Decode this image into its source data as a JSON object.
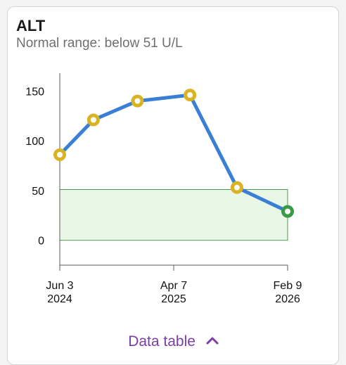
{
  "header": {
    "title": "ALT",
    "subtitle": "Normal range: below 51 U/L"
  },
  "chart_data": {
    "type": "line",
    "title": "ALT",
    "subtitle": "Normal range: below 51 U/L",
    "unit": "U/L",
    "normal_range": [
      0,
      51
    ],
    "ylim": [
      -25,
      168
    ],
    "yticks": [
      0,
      50,
      100,
      150
    ],
    "xlim": [
      "2024-06-03",
      "2026-02-09"
    ],
    "xticks": [
      {
        "date": "2024-06-03",
        "line1": "Jun 3",
        "line2": "2024"
      },
      {
        "date": "2025-04-07",
        "line1": "Apr 7",
        "line2": "2025"
      },
      {
        "date": "2026-02-09",
        "line1": "Feb 9",
        "line2": "2026"
      }
    ],
    "points": [
      {
        "x": "2024-06-03",
        "y": 86,
        "status": "abnormal"
      },
      {
        "x": "2024-09-02",
        "y": 121,
        "status": "abnormal"
      },
      {
        "x": "2024-12-30",
        "y": 140,
        "status": "abnormal"
      },
      {
        "x": "2025-05-21",
        "y": 146,
        "status": "abnormal"
      },
      {
        "x": "2025-09-25",
        "y": 53,
        "status": "abnormal"
      },
      {
        "x": "2026-02-09",
        "y": 29,
        "status": "normal"
      }
    ],
    "colors": {
      "line": "#3a7fd6",
      "abnormal_fill": "#d8b423",
      "normal_point": "#3a9a4a",
      "range_fill": "#e9f7e6",
      "range_stroke": "#4c9a57"
    }
  },
  "footer": {
    "data_table_label": "Data table"
  }
}
